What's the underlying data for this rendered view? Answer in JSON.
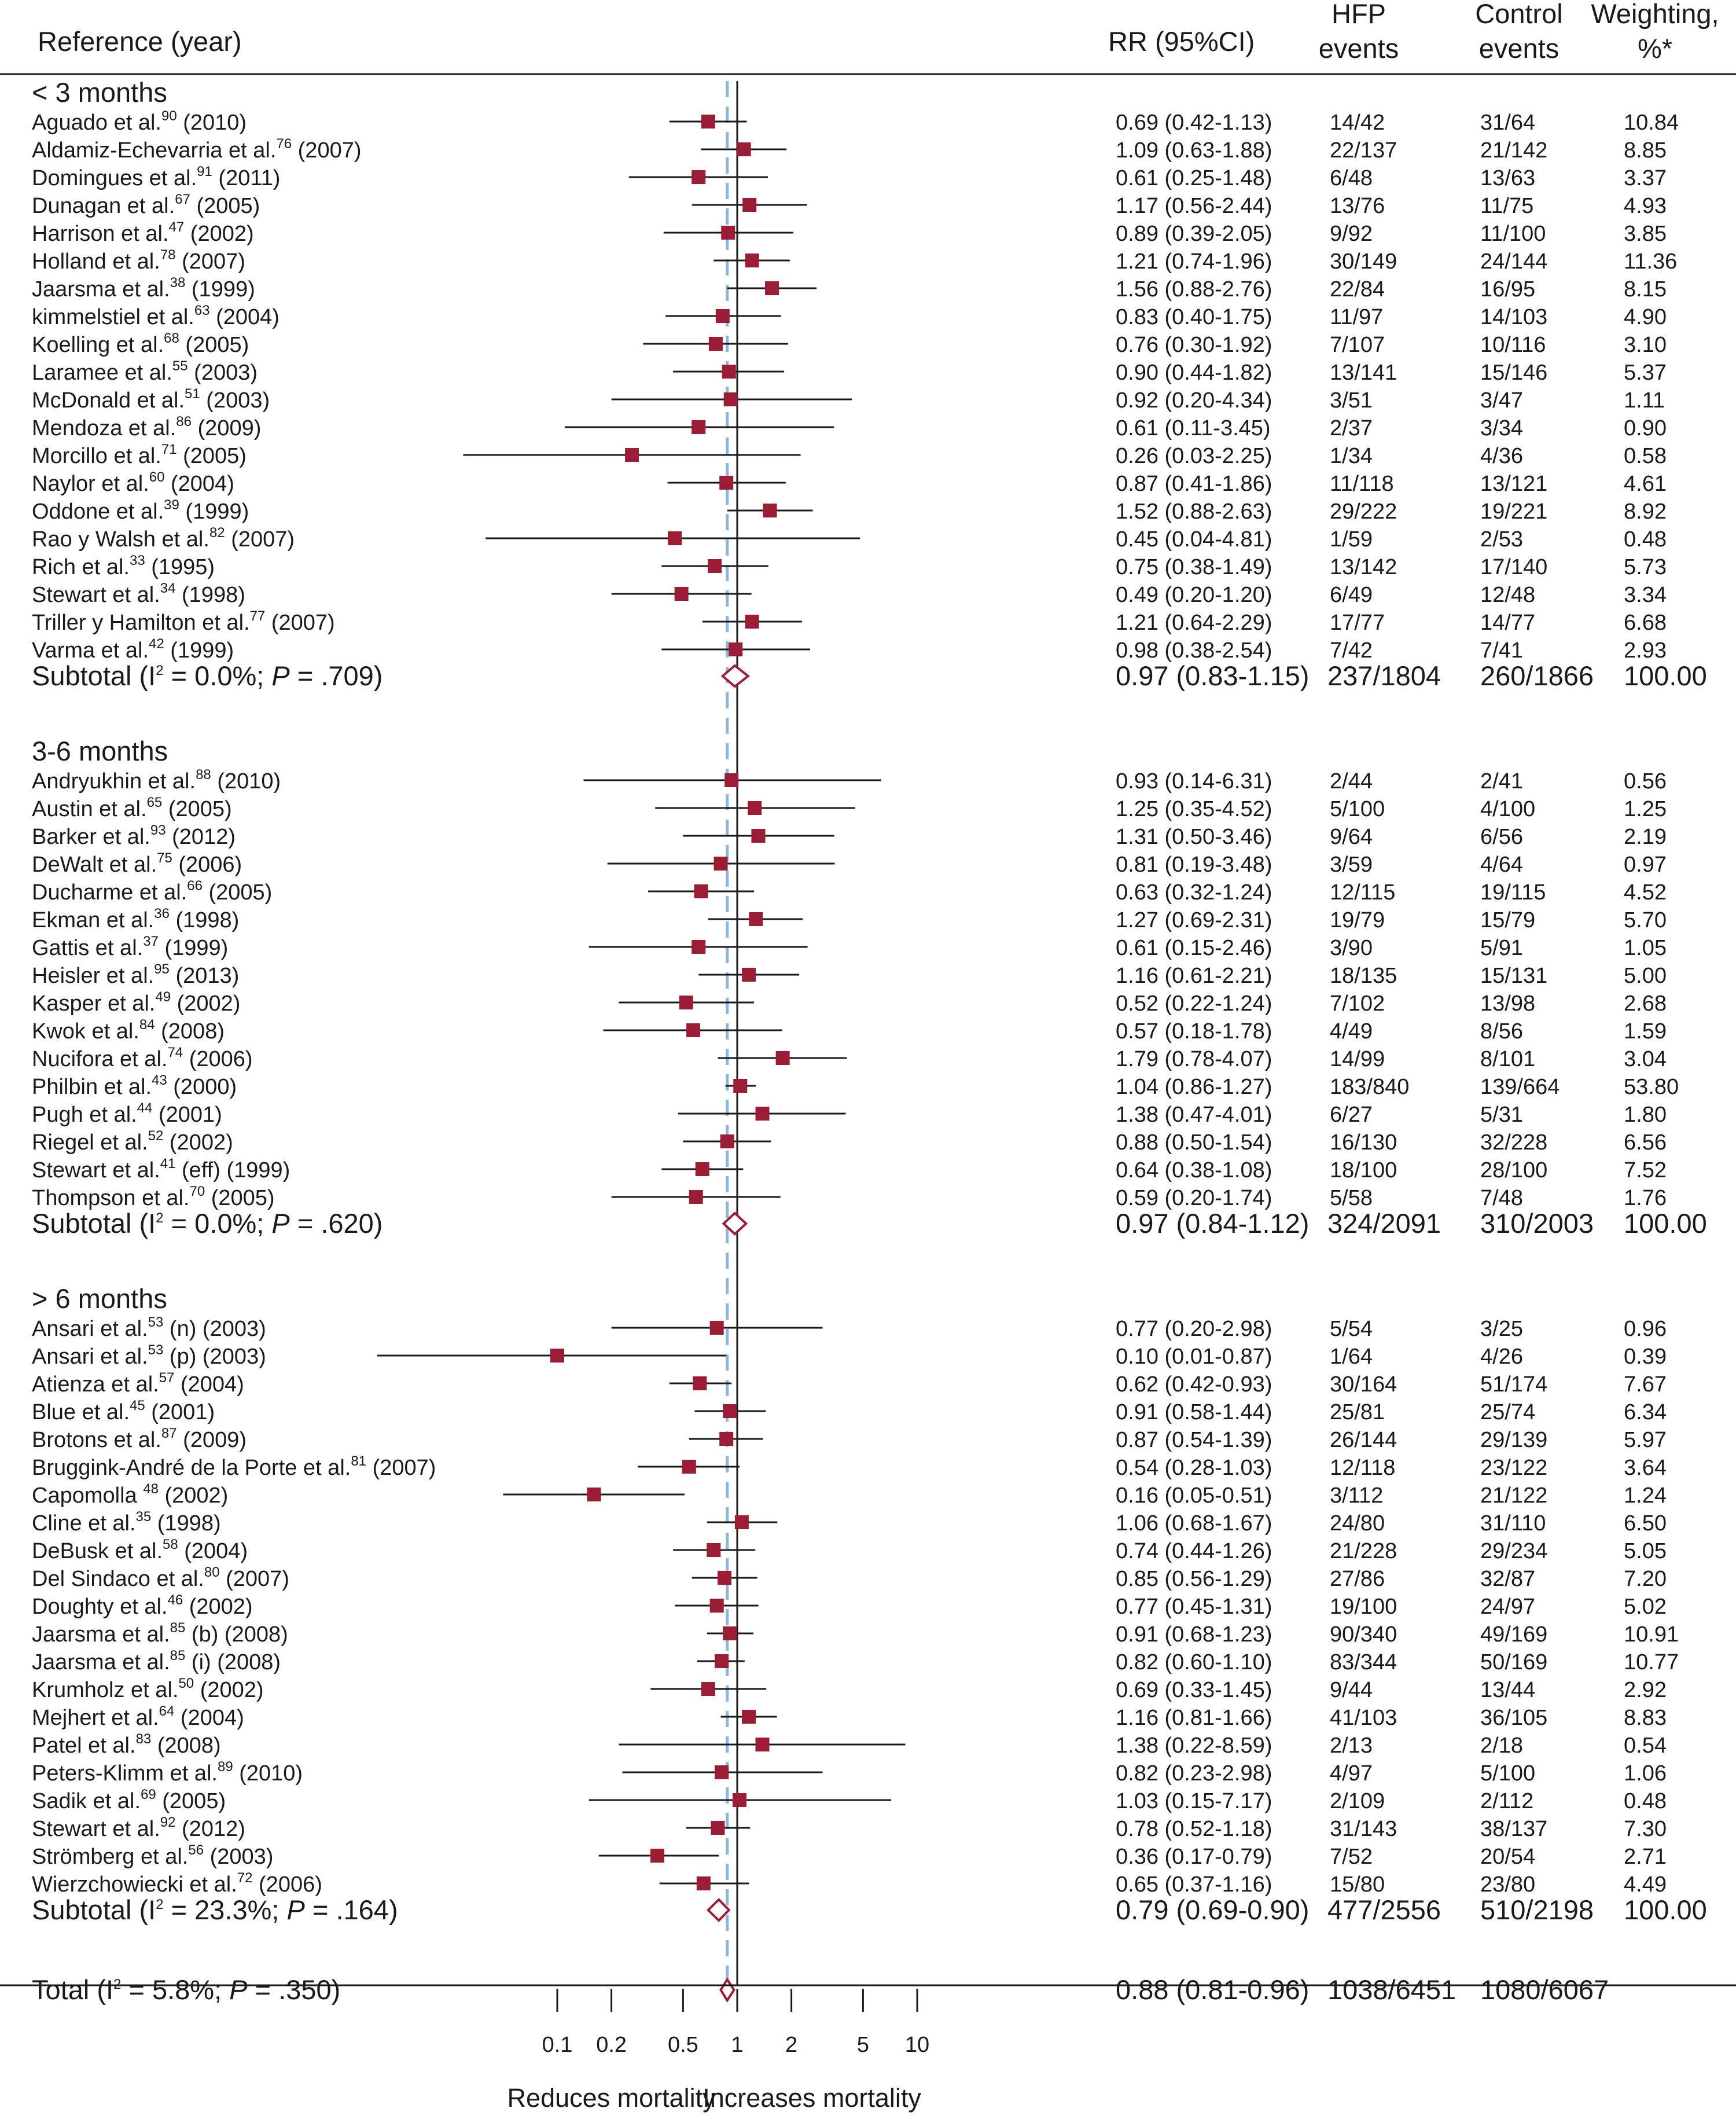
{
  "chart_data": {
    "type": "forest",
    "headers": {
      "reference": "Reference (year)",
      "rr": "RR (95%CI)",
      "hfp": [
        "HFP",
        "events"
      ],
      "control": [
        "Control",
        "events"
      ],
      "weight": [
        "Weighting,",
        "%*"
      ]
    },
    "groups": [
      {
        "title": "< 3 months",
        "studies": [
          {
            "name": "Aguado et al.",
            "ref": "90",
            "suffix": " (2010)",
            "rr": 0.69,
            "lo": 0.42,
            "hi": 1.13,
            "ci": "0.69 (0.42-1.13)",
            "hfp": "14/42",
            "ctrl": "31/64",
            "w": "10.84"
          },
          {
            "name": "Aldamiz-Echevarria et al.",
            "ref": "76",
            "suffix": " (2007)",
            "rr": 1.09,
            "lo": 0.63,
            "hi": 1.88,
            "ci": "1.09 (0.63-1.88)",
            "hfp": "22/137",
            "ctrl": "21/142",
            "w": "8.85"
          },
          {
            "name": "Domingues et al.",
            "ref": "91",
            "suffix": " (2011)",
            "rr": 0.61,
            "lo": 0.25,
            "hi": 1.48,
            "ci": "0.61 (0.25-1.48)",
            "hfp": "6/48",
            "ctrl": "13/63",
            "w": "3.37"
          },
          {
            "name": "Dunagan et al.",
            "ref": "67",
            "suffix": " (2005)",
            "rr": 1.17,
            "lo": 0.56,
            "hi": 2.44,
            "ci": "1.17 (0.56-2.44)",
            "hfp": "13/76",
            "ctrl": "11/75",
            "w": "4.93"
          },
          {
            "name": "Harrison et al.",
            "ref": "47",
            "suffix": " (2002)",
            "rr": 0.89,
            "lo": 0.39,
            "hi": 2.05,
            "ci": "0.89 (0.39-2.05)",
            "hfp": "9/92",
            "ctrl": "11/100",
            "w": "3.85"
          },
          {
            "name": "Holland et al.",
            "ref": "78",
            "suffix": " (2007)",
            "rr": 1.21,
            "lo": 0.74,
            "hi": 1.96,
            "ci": "1.21 (0.74-1.96)",
            "hfp": "30/149",
            "ctrl": "24/144",
            "w": "11.36"
          },
          {
            "name": "Jaarsma et al.",
            "ref": "38",
            "suffix": " (1999)",
            "rr": 1.56,
            "lo": 0.88,
            "hi": 2.76,
            "ci": "1.56 (0.88-2.76)",
            "hfp": "22/84",
            "ctrl": "16/95",
            "w": "8.15"
          },
          {
            "name": "kimmelstiel et al.",
            "ref": "63",
            "suffix": " (2004)",
            "rr": 0.83,
            "lo": 0.4,
            "hi": 1.75,
            "ci": "0.83 (0.40-1.75)",
            "hfp": "11/97",
            "ctrl": "14/103",
            "w": "4.90"
          },
          {
            "name": "Koelling et al.",
            "ref": "68",
            "suffix": " (2005)",
            "rr": 0.76,
            "lo": 0.3,
            "hi": 1.92,
            "ci": "0.76 (0.30-1.92)",
            "hfp": "7/107",
            "ctrl": "10/116",
            "w": "3.10"
          },
          {
            "name": "Laramee et al.",
            "ref": "55",
            "suffix": " (2003)",
            "rr": 0.9,
            "lo": 0.44,
            "hi": 1.82,
            "ci": "0.90 (0.44-1.82)",
            "hfp": "13/141",
            "ctrl": "15/146",
            "w": "5.37"
          },
          {
            "name": "McDonald et al.",
            "ref": "51",
            "suffix": " (2003)",
            "rr": 0.92,
            "lo": 0.2,
            "hi": 4.34,
            "ci": "0.92 (0.20-4.34)",
            "hfp": "3/51",
            "ctrl": "3/47",
            "w": "1.11"
          },
          {
            "name": "Mendoza et al.",
            "ref": "86",
            "suffix": " (2009)",
            "rr": 0.61,
            "lo": 0.11,
            "hi": 3.45,
            "ci": "0.61 (0.11-3.45)",
            "hfp": "2/37",
            "ctrl": "3/34",
            "w": "0.90"
          },
          {
            "name": "Morcillo et al.",
            "ref": "71",
            "suffix": " (2005)",
            "rr": 0.26,
            "lo": 0.03,
            "hi": 2.25,
            "ci": "0.26 (0.03-2.25)",
            "hfp": "1/34",
            "ctrl": "4/36",
            "w": "0.58"
          },
          {
            "name": "Naylor et al.",
            "ref": "60",
            "suffix": " (2004)",
            "rr": 0.87,
            "lo": 0.41,
            "hi": 1.86,
            "ci": "0.87 (0.41-1.86)",
            "hfp": "11/118",
            "ctrl": "13/121",
            "w": "4.61"
          },
          {
            "name": "Oddone et al.",
            "ref": "39",
            "suffix": " (1999)",
            "rr": 1.52,
            "lo": 0.88,
            "hi": 2.63,
            "ci": "1.52 (0.88-2.63)",
            "hfp": "29/222",
            "ctrl": "19/221",
            "w": "8.92"
          },
          {
            "name": "Rao y Walsh et al.",
            "ref": "82",
            "suffix": " (2007)",
            "rr": 0.45,
            "lo": 0.04,
            "hi": 4.81,
            "ci": "0.45 (0.04-4.81)",
            "hfp": "1/59",
            "ctrl": "2/53",
            "w": "0.48"
          },
          {
            "name": "Rich et al.",
            "ref": "33",
            "suffix": " (1995)",
            "rr": 0.75,
            "lo": 0.38,
            "hi": 1.49,
            "ci": "0.75 (0.38-1.49)",
            "hfp": "13/142",
            "ctrl": "17/140",
            "w": "5.73"
          },
          {
            "name": "Stewart et al.",
            "ref": "34",
            "suffix": " (1998)",
            "rr": 0.49,
            "lo": 0.2,
            "hi": 1.2,
            "ci": "0.49 (0.20-1.20)",
            "hfp": "6/49",
            "ctrl": "12/48",
            "w": "3.34"
          },
          {
            "name": "Triller y Hamilton et al.",
            "ref": "77",
            "suffix": " (2007)",
            "rr": 1.21,
            "lo": 0.64,
            "hi": 2.29,
            "ci": "1.21 (0.64-2.29)",
            "hfp": "17/77",
            "ctrl": "14/77",
            "w": "6.68"
          },
          {
            "name": "Varma et al.",
            "ref": "42",
            "suffix": " (1999)",
            "rr": 0.98,
            "lo": 0.38,
            "hi": 2.54,
            "ci": "0.98 (0.38-2.54)",
            "hfp": "7/42",
            "ctrl": "7/41",
            "w": "2.93"
          }
        ],
        "subtotal": {
          "i2": "0.0%",
          "p": ".709",
          "rr": 0.97,
          "lo": 0.83,
          "hi": 1.15,
          "ci": "0.97 (0.83-1.15)",
          "hfp": "237/1804",
          "ctrl": "260/1866",
          "w": "100.00"
        }
      },
      {
        "title": "3-6 months",
        "studies": [
          {
            "name": "Andryukhin et al.",
            "ref": "88",
            "suffix": " (2010)",
            "rr": 0.93,
            "lo": 0.14,
            "hi": 6.31,
            "ci": "0.93 (0.14-6.31)",
            "hfp": "2/44",
            "ctrl": "2/41",
            "w": "0.56"
          },
          {
            "name": "Austin et al.",
            "ref": "65",
            "suffix": " (2005)",
            "rr": 1.25,
            "lo": 0.35,
            "hi": 4.52,
            "ci": "1.25 (0.35-4.52)",
            "hfp": "5/100",
            "ctrl": "4/100",
            "w": "1.25"
          },
          {
            "name": "Barker et al.",
            "ref": "93",
            "suffix": " (2012)",
            "rr": 1.31,
            "lo": 0.5,
            "hi": 3.46,
            "ci": "1.31 (0.50-3.46)",
            "hfp": "9/64",
            "ctrl": "6/56",
            "w": "2.19"
          },
          {
            "name": "DeWalt et al.",
            "ref": "75",
            "suffix": " (2006)",
            "rr": 0.81,
            "lo": 0.19,
            "hi": 3.48,
            "ci": "0.81 (0.19-3.48)",
            "hfp": "3/59",
            "ctrl": "4/64",
            "w": "0.97"
          },
          {
            "name": "Ducharme et al.",
            "ref": "66",
            "suffix": " (2005)",
            "rr": 0.63,
            "lo": 0.32,
            "hi": 1.24,
            "ci": "0.63 (0.32-1.24)",
            "hfp": "12/115",
            "ctrl": "19/115",
            "w": "4.52"
          },
          {
            "name": "Ekman et al.",
            "ref": "36",
            "suffix": " (1998)",
            "rr": 1.27,
            "lo": 0.69,
            "hi": 2.31,
            "ci": "1.27 (0.69-2.31)",
            "hfp": "19/79",
            "ctrl": "15/79",
            "w": "5.70"
          },
          {
            "name": "Gattis et al.",
            "ref": "37",
            "suffix": " (1999)",
            "rr": 0.61,
            "lo": 0.15,
            "hi": 2.46,
            "ci": "0.61 (0.15-2.46)",
            "hfp": "3/90",
            "ctrl": "5/91",
            "w": "1.05"
          },
          {
            "name": "Heisler et al.",
            "ref": "95",
            "suffix": " (2013)",
            "rr": 1.16,
            "lo": 0.61,
            "hi": 2.21,
            "ci": "1.16 (0.61-2.21)",
            "hfp": "18/135",
            "ctrl": "15/131",
            "w": "5.00"
          },
          {
            "name": "Kasper et al.",
            "ref": "49",
            "suffix": " (2002)",
            "rr": 0.52,
            "lo": 0.22,
            "hi": 1.24,
            "ci": "0.52 (0.22-1.24)",
            "hfp": "7/102",
            "ctrl": "13/98",
            "w": "2.68"
          },
          {
            "name": "Kwok et al.",
            "ref": "84",
            "suffix": " (2008)",
            "rr": 0.57,
            "lo": 0.18,
            "hi": 1.78,
            "ci": "0.57 (0.18-1.78)",
            "hfp": "4/49",
            "ctrl": "8/56",
            "w": "1.59"
          },
          {
            "name": "Nucifora et al.",
            "ref": "74",
            "suffix": " (2006)",
            "rr": 1.79,
            "lo": 0.78,
            "hi": 4.07,
            "ci": "1.79 (0.78-4.07)",
            "hfp": "14/99",
            "ctrl": "8/101",
            "w": "3.04"
          },
          {
            "name": "Philbin et al.",
            "ref": "43",
            "suffix": " (2000)",
            "rr": 1.04,
            "lo": 0.86,
            "hi": 1.27,
            "ci": "1.04 (0.86-1.27)",
            "hfp": "183/840",
            "ctrl": "139/664",
            "w": "53.80"
          },
          {
            "name": "Pugh et al.",
            "ref": "44",
            "suffix": " (2001)",
            "rr": 1.38,
            "lo": 0.47,
            "hi": 4.01,
            "ci": "1.38 (0.47-4.01)",
            "hfp": "6/27",
            "ctrl": "5/31",
            "w": "1.80"
          },
          {
            "name": "Riegel et al.",
            "ref": "52",
            "suffix": " (2002)",
            "rr": 0.88,
            "lo": 0.5,
            "hi": 1.54,
            "ci": "0.88 (0.50-1.54)",
            "hfp": "16/130",
            "ctrl": "32/228",
            "w": "6.56"
          },
          {
            "name": "Stewart et al.",
            "ref": "41",
            "suffix": " (eff) (1999)",
            "rr": 0.64,
            "lo": 0.38,
            "hi": 1.08,
            "ci": "0.64 (0.38-1.08)",
            "hfp": "18/100",
            "ctrl": "28/100",
            "w": "7.52"
          },
          {
            "name": "Thompson et al.",
            "ref": "70",
            "suffix": " (2005)",
            "rr": 0.59,
            "lo": 0.2,
            "hi": 1.74,
            "ci": "0.59 (0.20-1.74)",
            "hfp": "5/58",
            "ctrl": "7/48",
            "w": "1.76"
          }
        ],
        "subtotal": {
          "i2": "0.0%",
          "p": ".620",
          "rr": 0.97,
          "lo": 0.84,
          "hi": 1.12,
          "ci": "0.97 (0.84-1.12)",
          "hfp": "324/2091",
          "ctrl": "310/2003",
          "w": "100.00"
        }
      },
      {
        "title": "> 6 months",
        "studies": [
          {
            "name": "Ansari et al.",
            "ref": "53",
            "suffix": " (n) (2003)",
            "rr": 0.77,
            "lo": 0.2,
            "hi": 2.98,
            "ci": "0.77 (0.20-2.98)",
            "hfp": "5/54",
            "ctrl": "3/25",
            "w": "0.96"
          },
          {
            "name": "Ansari et al.",
            "ref": "53",
            "suffix": " (p) (2003)",
            "rr": 0.1,
            "lo": 0.01,
            "hi": 0.87,
            "ci": "0.10 (0.01-0.87)",
            "hfp": "1/64",
            "ctrl": "4/26",
            "w": "0.39"
          },
          {
            "name": "Atienza et al.",
            "ref": "57",
            "suffix": " (2004)",
            "rr": 0.62,
            "lo": 0.42,
            "hi": 0.93,
            "ci": "0.62 (0.42-0.93)",
            "hfp": "30/164",
            "ctrl": "51/174",
            "w": "7.67"
          },
          {
            "name": "Blue et al.",
            "ref": "45",
            "suffix": " (2001)",
            "rr": 0.91,
            "lo": 0.58,
            "hi": 1.44,
            "ci": "0.91 (0.58-1.44)",
            "hfp": "25/81",
            "ctrl": "25/74",
            "w": "6.34"
          },
          {
            "name": "Brotons et al.",
            "ref": "87",
            "suffix": " (2009)",
            "rr": 0.87,
            "lo": 0.54,
            "hi": 1.39,
            "ci": "0.87 (0.54-1.39)",
            "hfp": "26/144",
            "ctrl": "29/139",
            "w": "5.97"
          },
          {
            "name": "Bruggink-André de la Porte et al.",
            "ref": "81",
            "suffix": " (2007)",
            "rr": 0.54,
            "lo": 0.28,
            "hi": 1.03,
            "ci": "0.54 (0.28-1.03)",
            "hfp": "12/118",
            "ctrl": "23/122",
            "w": "3.64"
          },
          {
            "name": "Capomolla ",
            "ref": "48",
            "suffix": " (2002)",
            "rr": 0.16,
            "lo": 0.05,
            "hi": 0.51,
            "ci": "0.16 (0.05-0.51)",
            "hfp": "3/112",
            "ctrl": "21/122",
            "w": "1.24"
          },
          {
            "name": "Cline et al.",
            "ref": "35",
            "suffix": " (1998)",
            "rr": 1.06,
            "lo": 0.68,
            "hi": 1.67,
            "ci": "1.06 (0.68-1.67)",
            "hfp": "24/80",
            "ctrl": "31/110",
            "w": "6.50"
          },
          {
            "name": "DeBusk et al.",
            "ref": "58",
            "suffix": " (2004)",
            "rr": 0.74,
            "lo": 0.44,
            "hi": 1.26,
            "ci": "0.74 (0.44-1.26)",
            "hfp": "21/228",
            "ctrl": "29/234",
            "w": "5.05"
          },
          {
            "name": "Del Sindaco et al.",
            "ref": "80",
            "suffix": " (2007)",
            "rr": 0.85,
            "lo": 0.56,
            "hi": 1.29,
            "ci": "0.85 (0.56-1.29)",
            "hfp": "27/86",
            "ctrl": "32/87",
            "w": "7.20"
          },
          {
            "name": "Doughty et al.",
            "ref": "46",
            "suffix": " (2002)",
            "rr": 0.77,
            "lo": 0.45,
            "hi": 1.31,
            "ci": "0.77 (0.45-1.31)",
            "hfp": "19/100",
            "ctrl": "24/97",
            "w": "5.02"
          },
          {
            "name": "Jaarsma et al.",
            "ref": "85",
            "suffix": " (b) (2008)",
            "rr": 0.91,
            "lo": 0.68,
            "hi": 1.23,
            "ci": "0.91 (0.68-1.23)",
            "hfp": "90/340",
            "ctrl": "49/169",
            "w": "10.91"
          },
          {
            "name": "Jaarsma et al.",
            "ref": "85",
            "suffix": " (i) (2008)",
            "rr": 0.82,
            "lo": 0.6,
            "hi": 1.1,
            "ci": "0.82 (0.60-1.10)",
            "hfp": "83/344",
            "ctrl": "50/169",
            "w": "10.77"
          },
          {
            "name": "Krumholz et al.",
            "ref": "50",
            "suffix": " (2002)",
            "rr": 0.69,
            "lo": 0.33,
            "hi": 1.45,
            "ci": "0.69 (0.33-1.45)",
            "hfp": "9/44",
            "ctrl": "13/44",
            "w": "2.92"
          },
          {
            "name": "Mejhert et al.",
            "ref": "64",
            "suffix": " (2004)",
            "rr": 1.16,
            "lo": 0.81,
            "hi": 1.66,
            "ci": "1.16 (0.81-1.66)",
            "hfp": "41/103",
            "ctrl": "36/105",
            "w": "8.83"
          },
          {
            "name": "Patel et al.",
            "ref": "83",
            "suffix": " (2008)",
            "rr": 1.38,
            "lo": 0.22,
            "hi": 8.59,
            "ci": "1.38 (0.22-8.59)",
            "hfp": "2/13",
            "ctrl": "2/18",
            "w": "0.54"
          },
          {
            "name": "Peters-Klimm et al.",
            "ref": "89",
            "suffix": " (2010)",
            "rr": 0.82,
            "lo": 0.23,
            "hi": 2.98,
            "ci": "0.82 (0.23-2.98)",
            "hfp": "4/97",
            "ctrl": "5/100",
            "w": "1.06"
          },
          {
            "name": "Sadik et al.",
            "ref": "69",
            "suffix": " (2005)",
            "rr": 1.03,
            "lo": 0.15,
            "hi": 7.17,
            "ci": "1.03 (0.15-7.17)",
            "hfp": "2/109",
            "ctrl": "2/112",
            "w": "0.48"
          },
          {
            "name": "Stewart et al.",
            "ref": "92",
            "suffix": " (2012)",
            "rr": 0.78,
            "lo": 0.52,
            "hi": 1.18,
            "ci": "0.78 (0.52-1.18)",
            "hfp": "31/143",
            "ctrl": "38/137",
            "w": "7.30"
          },
          {
            "name": "Strömberg et al.",
            "ref": "56",
            "suffix": " (2003)",
            "rr": 0.36,
            "lo": 0.17,
            "hi": 0.79,
            "ci": "0.36 (0.17-0.79)",
            "hfp": "7/52",
            "ctrl": "20/54",
            "w": "2.71"
          },
          {
            "name": "Wierzchowiecki et al.",
            "ref": "72",
            "suffix": " (2006)",
            "rr": 0.65,
            "lo": 0.37,
            "hi": 1.16,
            "ci": "0.65 (0.37-1.16)",
            "hfp": "15/80",
            "ctrl": "23/80",
            "w": "4.49"
          }
        ],
        "subtotal": {
          "i2": "23.3%",
          "p": ".164",
          "rr": 0.79,
          "lo": 0.69,
          "hi": 0.9,
          "ci": "0.79 (0.69-0.90)",
          "hfp": "477/2556",
          "ctrl": "510/2198",
          "w": "100.00"
        }
      }
    ],
    "total": {
      "i2": "5.8%",
      "p": ".350",
      "rr": 0.88,
      "lo": 0.81,
      "hi": 0.96,
      "ci": "0.88 (0.81-0.96)",
      "hfp": "1038/6451",
      "ctrl": "1080/6067"
    },
    "x_axis": {
      "scale": "log",
      "ticks": [
        0.1,
        0.2,
        0.5,
        1,
        2,
        5,
        10
      ],
      "tick_labels": [
        "0.1",
        "0.2",
        "0.5",
        "1",
        "2",
        "5",
        "10"
      ],
      "null_line": 1,
      "reference_line": 0.88,
      "left_label": "Reduces mortality",
      "right_label": "Increases mortality"
    },
    "colors": {
      "marker": "#9b1c35",
      "diamond": "#9b1c35",
      "reference_line": "#8fb4dc",
      "text": "#1a1a1a",
      "lines": "#1a1a1a"
    }
  }
}
